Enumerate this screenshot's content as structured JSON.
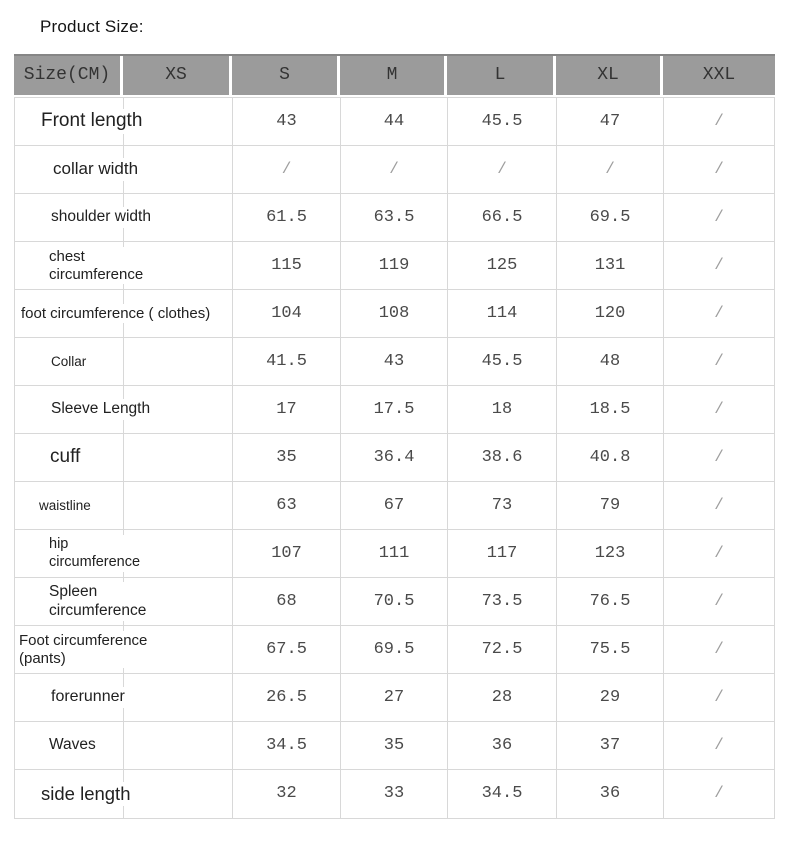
{
  "page_title": "Product Size:",
  "colors": {
    "header_bg": "#9b9b9b",
    "header_text": "#333333",
    "grid_line": "#d8d8d8",
    "label_text": "#212121",
    "value_text": "#4a4a4a",
    "slash_text": "#9e9e9e"
  },
  "table": {
    "unit": "CM",
    "header": {
      "size_cm": "Size(CM)",
      "xs": "XS",
      "s": "S",
      "m": "M",
      "l": "L",
      "xl": "XL",
      "xxl": "XXL"
    },
    "rows": [
      {
        "label": "Front length",
        "xs": "",
        "s": "43",
        "m": "44",
        "l": "45.5",
        "xl": "47",
        "xxl": "/"
      },
      {
        "label": "collar width",
        "xs": "",
        "s": "/",
        "m": "/",
        "l": "/",
        "xl": "/",
        "xxl": "/"
      },
      {
        "label": "shoulder width",
        "xs": "",
        "s": "61.5",
        "m": "63.5",
        "l": "66.5",
        "xl": "69.5",
        "xxl": "/"
      },
      {
        "label": "chest circumference",
        "xs": "",
        "s": "115",
        "m": "119",
        "l": "125",
        "xl": "131",
        "xxl": "/"
      },
      {
        "label": "foot circumference ( clothes)",
        "xs": "",
        "s": "104",
        "m": "108",
        "l": "114",
        "xl": "120",
        "xxl": "/"
      },
      {
        "label": "Collar",
        "xs": "",
        "s": "41.5",
        "m": "43",
        "l": "45.5",
        "xl": "48",
        "xxl": "/"
      },
      {
        "label": "Sleeve Length",
        "xs": "",
        "s": "17",
        "m": "17.5",
        "l": "18",
        "xl": "18.5",
        "xxl": "/"
      },
      {
        "label": "cuff",
        "xs": "",
        "s": "35",
        "m": "36.4",
        "l": "38.6",
        "xl": "40.8",
        "xxl": "/"
      },
      {
        "label": "waistline",
        "xs": "",
        "s": "63",
        "m": "67",
        "l": "73",
        "xl": "79",
        "xxl": "/"
      },
      {
        "label": "hip circumference",
        "xs": "",
        "s": "107",
        "m": "111",
        "l": "117",
        "xl": "123",
        "xxl": "/"
      },
      {
        "label": "Spleen circumference",
        "xs": "",
        "s": "68",
        "m": "70.5",
        "l": "73.5",
        "xl": "76.5",
        "xxl": "/"
      },
      {
        "label": "Foot circumference (pants)",
        "xs": "",
        "s": "67.5",
        "m": "69.5",
        "l": "72.5",
        "xl": "75.5",
        "xxl": "/"
      },
      {
        "label": "forerunner",
        "xs": "",
        "s": "26.5",
        "m": "27",
        "l": "28",
        "xl": "29",
        "xxl": "/"
      },
      {
        "label": "Waves",
        "xs": "",
        "s": "34.5",
        "m": "35",
        "l": "36",
        "xl": "37",
        "xxl": "/"
      },
      {
        "label": "side length",
        "xs": "",
        "s": "32",
        "m": "33",
        "l": "34.5",
        "xl": "36",
        "xxl": "/"
      }
    ]
  }
}
